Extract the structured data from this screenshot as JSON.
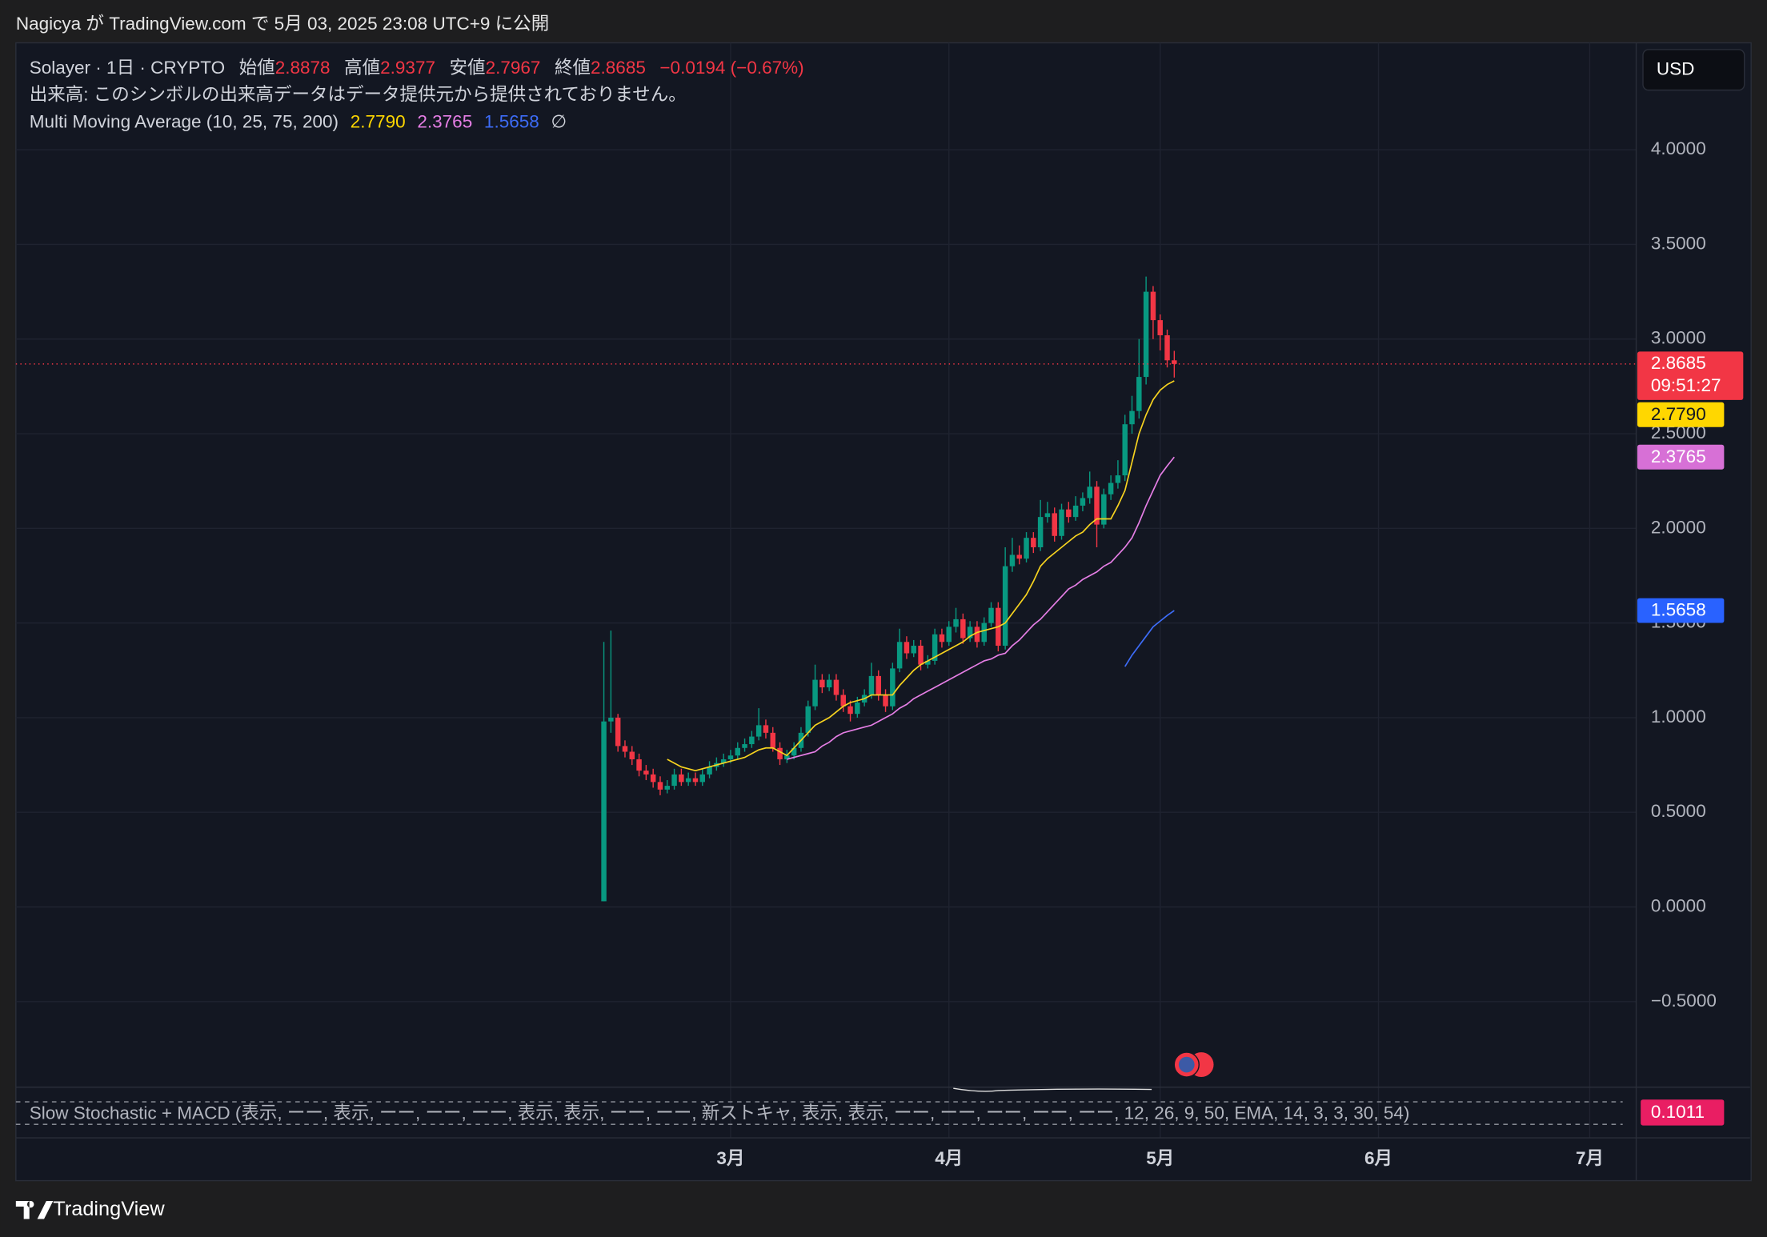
{
  "header": "Nagicya が TradingView.com で 5月 03, 2025 23:08 UTC+9 に公開",
  "chart_data": {
    "type": "candlestick",
    "symbol_line": "Solayer · 1日 · CRYPTO",
    "legend": {
      "open_label": "始値",
      "open": "2.8878",
      "high_label": "高値",
      "high": "2.9377",
      "low_label": "安値",
      "low": "2.7967",
      "close_label": "終値",
      "close": "2.8685",
      "change": "−0.0194 (−0.67%)"
    },
    "volume_note": "出来高: このシンボルの出来高データはデータ提供元から提供されておりません。",
    "ma_title": "Multi Moving Average (10, 25, 75, 200)",
    "ma_empty": "∅",
    "currency": "USD",
    "countdown": "09:51:27",
    "last_price": {
      "value": 2.8685,
      "label": "2.8685"
    },
    "up_color": "#089981",
    "down_color": "#f23645",
    "categories": [
      null,
      null,
      null,
      null,
      null,
      null,
      null,
      null,
      null,
      null,
      null,
      null,
      null,
      null,
      null,
      null,
      null,
      null,
      null,
      null,
      null,
      null,
      null,
      null,
      null,
      null,
      null,
      null,
      null,
      null,
      null,
      null,
      null,
      null,
      null,
      null,
      null,
      null,
      null,
      null,
      null,
      null,
      null,
      null,
      null,
      null,
      null,
      null,
      null,
      null,
      null,
      null,
      null,
      null,
      null,
      null,
      null,
      null,
      null,
      null,
      null,
      null,
      null,
      null,
      null,
      null,
      null,
      null,
      null,
      null,
      null,
      null,
      null,
      null,
      null,
      null,
      null,
      null,
      null,
      null,
      null,
      null
    ],
    "open": [
      0.03,
      0.98,
      1.0,
      0.85,
      0.82,
      0.78,
      0.72,
      0.7,
      0.66,
      0.62,
      0.64,
      0.7,
      0.66,
      0.68,
      0.66,
      0.7,
      0.74,
      0.76,
      0.78,
      0.8,
      0.84,
      0.86,
      0.9,
      0.96,
      0.92,
      0.84,
      0.78,
      0.8,
      0.84,
      0.92,
      1.06,
      1.2,
      1.16,
      1.2,
      1.12,
      1.06,
      1.02,
      1.08,
      1.12,
      1.22,
      1.12,
      1.06,
      1.26,
      1.4,
      1.34,
      1.38,
      1.28,
      1.3,
      1.44,
      1.4,
      1.48,
      1.52,
      1.42,
      1.48,
      1.4,
      1.5,
      1.58,
      1.38,
      1.8,
      1.86,
      1.84,
      1.95,
      1.9,
      2.06,
      2.08,
      1.96,
      2.1,
      2.06,
      2.12,
      2.16,
      2.22,
      2.02,
      2.18,
      2.24,
      2.28,
      2.55,
      2.62,
      2.8,
      3.25,
      3.1,
      3.02,
      2.8878
    ],
    "high": [
      1.4,
      1.46,
      1.02,
      0.88,
      0.85,
      0.81,
      0.75,
      0.73,
      0.69,
      0.67,
      0.73,
      0.73,
      0.71,
      0.71,
      0.73,
      0.77,
      0.79,
      0.81,
      0.83,
      0.87,
      0.89,
      0.93,
      1.05,
      0.99,
      0.95,
      0.87,
      0.83,
      0.87,
      0.95,
      1.09,
      1.28,
      1.23,
      1.23,
      1.23,
      1.15,
      1.09,
      1.11,
      1.15,
      1.29,
      1.25,
      1.15,
      1.29,
      1.47,
      1.43,
      1.41,
      1.41,
      1.33,
      1.47,
      1.47,
      1.51,
      1.58,
      1.55,
      1.51,
      1.51,
      1.53,
      1.61,
      1.61,
      1.9,
      1.95,
      1.91,
      1.98,
      1.98,
      2.15,
      2.14,
      2.11,
      2.13,
      2.14,
      2.17,
      2.19,
      2.3,
      2.25,
      2.21,
      2.28,
      2.36,
      2.6,
      2.7,
      3.0,
      3.33,
      3.28,
      3.13,
      3.05,
      2.9377
    ],
    "low": [
      0.03,
      0.92,
      0.82,
      0.79,
      0.75,
      0.69,
      0.67,
      0.63,
      0.59,
      0.6,
      0.62,
      0.64,
      0.64,
      0.64,
      0.64,
      0.68,
      0.72,
      0.74,
      0.76,
      0.78,
      0.82,
      0.84,
      0.88,
      0.89,
      0.82,
      0.75,
      0.76,
      0.78,
      0.82,
      0.9,
      1.04,
      1.13,
      1.14,
      1.09,
      1.03,
      0.98,
      1.0,
      1.06,
      1.1,
      1.09,
      1.03,
      1.04,
      1.24,
      1.31,
      1.32,
      1.25,
      1.26,
      1.28,
      1.37,
      1.38,
      1.45,
      1.39,
      1.4,
      1.37,
      1.38,
      1.48,
      1.35,
      1.36,
      1.77,
      1.81,
      1.82,
      1.87,
      1.88,
      2.03,
      1.93,
      1.94,
      2.03,
      2.04,
      2.09,
      2.13,
      1.9,
      2.0,
      2.15,
      2.21,
      2.25,
      2.5,
      2.58,
      2.76,
      3.0,
      2.94,
      2.85,
      2.7967
    ],
    "close": [
      0.98,
      1.0,
      0.85,
      0.82,
      0.78,
      0.72,
      0.7,
      0.66,
      0.62,
      0.64,
      0.7,
      0.66,
      0.68,
      0.66,
      0.7,
      0.74,
      0.76,
      0.78,
      0.8,
      0.84,
      0.86,
      0.9,
      0.96,
      0.92,
      0.84,
      0.78,
      0.8,
      0.84,
      0.92,
      1.06,
      1.2,
      1.16,
      1.2,
      1.12,
      1.06,
      1.02,
      1.08,
      1.12,
      1.22,
      1.12,
      1.06,
      1.26,
      1.4,
      1.34,
      1.38,
      1.28,
      1.3,
      1.44,
      1.4,
      1.48,
      1.52,
      1.42,
      1.48,
      1.4,
      1.5,
      1.58,
      1.38,
      1.8,
      1.86,
      1.84,
      1.95,
      1.9,
      2.06,
      2.08,
      1.96,
      2.1,
      2.06,
      2.12,
      2.16,
      2.22,
      2.02,
      2.18,
      2.24,
      2.28,
      2.55,
      2.62,
      2.8,
      3.25,
      3.1,
      3.02,
      2.8878,
      2.8685
    ],
    "series": [
      {
        "color": "#f7d31f",
        "tag_color": "#ffd700",
        "last_label": "2.7790",
        "values": [
          null,
          null,
          null,
          null,
          null,
          null,
          null,
          null,
          null,
          0.78,
          0.76,
          0.74,
          0.73,
          0.72,
          0.73,
          0.74,
          0.75,
          0.76,
          0.77,
          0.78,
          0.79,
          0.81,
          0.83,
          0.84,
          0.84,
          0.82,
          0.8,
          0.84,
          0.88,
          0.92,
          0.96,
          0.98,
          1.0,
          1.03,
          1.06,
          1.08,
          1.09,
          1.1,
          1.12,
          1.12,
          1.12,
          1.12,
          1.17,
          1.21,
          1.25,
          1.28,
          1.3,
          1.32,
          1.34,
          1.36,
          1.38,
          1.4,
          1.43,
          1.45,
          1.46,
          1.47,
          1.48,
          1.5,
          1.55,
          1.6,
          1.65,
          1.72,
          1.8,
          1.84,
          1.87,
          1.9,
          1.93,
          1.96,
          1.98,
          2.02,
          2.05,
          2.05,
          2.05,
          2.12,
          2.2,
          2.35,
          2.5,
          2.6,
          2.68,
          2.73,
          2.76,
          2.779
        ]
      },
      {
        "color": "#e57ee5",
        "tag_color": "#d770d6",
        "last_label": "2.3765",
        "values": [
          null,
          null,
          null,
          null,
          null,
          null,
          null,
          null,
          null,
          null,
          null,
          null,
          null,
          null,
          null,
          null,
          null,
          null,
          null,
          null,
          null,
          null,
          null,
          null,
          null,
          null,
          0.78,
          0.79,
          0.8,
          0.81,
          0.82,
          0.85,
          0.87,
          0.9,
          0.92,
          0.93,
          0.94,
          0.95,
          0.96,
          0.98,
          1.0,
          1.02,
          1.05,
          1.07,
          1.1,
          1.12,
          1.14,
          1.16,
          1.18,
          1.2,
          1.22,
          1.24,
          1.26,
          1.28,
          1.3,
          1.31,
          1.33,
          1.34,
          1.38,
          1.41,
          1.45,
          1.49,
          1.52,
          1.56,
          1.6,
          1.64,
          1.68,
          1.7,
          1.73,
          1.75,
          1.77,
          1.8,
          1.82,
          1.86,
          1.9,
          1.95,
          2.03,
          2.12,
          2.2,
          2.28,
          2.33,
          2.3765
        ]
      },
      {
        "color": "#3d6cf7",
        "tag_color": "#2962ff",
        "last_label": "1.5658",
        "values": [
          null,
          null,
          null,
          null,
          null,
          null,
          null,
          null,
          null,
          null,
          null,
          null,
          null,
          null,
          null,
          null,
          null,
          null,
          null,
          null,
          null,
          null,
          null,
          null,
          null,
          null,
          null,
          null,
          null,
          null,
          null,
          null,
          null,
          null,
          null,
          null,
          null,
          null,
          null,
          null,
          null,
          null,
          null,
          null,
          null,
          null,
          null,
          null,
          null,
          null,
          null,
          null,
          null,
          null,
          null,
          null,
          null,
          null,
          null,
          null,
          null,
          null,
          null,
          null,
          null,
          null,
          null,
          null,
          null,
          null,
          null,
          null,
          null,
          null,
          1.27,
          1.33,
          1.38,
          1.43,
          1.48,
          1.51,
          1.54,
          1.5658
        ]
      }
    ],
    "ylim": [
      -0.952,
      4.565
    ],
    "yticks": [
      {
        "value": -0.5,
        "label": "−0.5000"
      },
      {
        "value": 0,
        "label": "0.0000"
      },
      {
        "value": 0.5,
        "label": "0.5000"
      },
      {
        "value": 1,
        "label": "1.0000"
      },
      {
        "value": 1.5,
        "label": "1.5000"
      },
      {
        "value": 2,
        "label": "2.0000"
      },
      {
        "value": 2.5,
        "label": "2.5000"
      },
      {
        "value": 3,
        "label": "3.0000"
      },
      {
        "value": 3.5,
        "label": "3.5000"
      },
      {
        "value": 4,
        "label": "4.0000"
      }
    ],
    "xlim": [
      -83.5,
      146.6
    ],
    "xticks": [
      {
        "value": 18,
        "label": "3月"
      },
      {
        "value": 49,
        "label": "4月"
      },
      {
        "value": 79,
        "label": "5月"
      },
      {
        "value": 110,
        "label": "6月"
      },
      {
        "value": 140,
        "label": "7月"
      }
    ],
    "grid": true
  },
  "indicator": {
    "text": "Slow Stochastic + MACD (表示, ーー, 表示, ーー, ーー, ーー, 表示, 表示, ーー, ーー, 新ストキャ, 表示, 表示, ーー, ーー, ーー, ーー, ーー, 12, 26, 9, 50, EMA, 14, 3, 3, 30, 54)",
    "value": "0.1011"
  },
  "footer": "TradingView"
}
